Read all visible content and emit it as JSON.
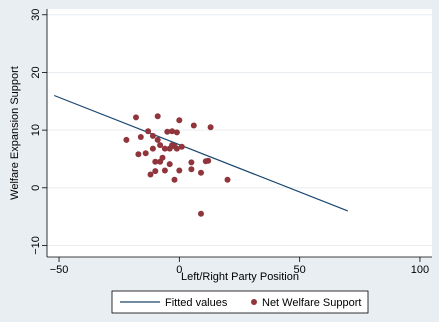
{
  "chart_data": {
    "type": "scatter",
    "title": "",
    "xlabel": "Left/Right Party Position",
    "ylabel": "Welfare Expansion Support",
    "xlim": [
      -55,
      105
    ],
    "ylim": [
      -12,
      31
    ],
    "xticks": [
      -50,
      0,
      50,
      100
    ],
    "yticks": [
      -10,
      0,
      10,
      20,
      30
    ],
    "grid": "horizontal",
    "legend_position": "bottom",
    "colors": {
      "plot_background": "#ffffff",
      "outer_background": "#e9eef2",
      "gridline": "#e9eef2",
      "fit_line": "#1a476f",
      "points": "#90353b"
    },
    "series": [
      {
        "name": "Fitted values",
        "kind": "line",
        "x": [
          -52,
          70
        ],
        "y": [
          16,
          -4
        ]
      },
      {
        "name": "Net Welfare Support",
        "kind": "scatter",
        "x": [
          -22,
          -18,
          -17,
          -16,
          -14,
          -13,
          -12,
          -11,
          -11,
          -10,
          -10,
          -9,
          -9,
          -8,
          -8,
          -7,
          -6,
          -6,
          -5,
          -4,
          -4,
          -3,
          -3,
          -2,
          -2,
          -1,
          -1,
          0,
          0,
          1,
          5,
          5,
          6,
          9,
          9,
          11,
          12,
          13,
          20
        ],
        "y": [
          8.3,
          12.2,
          5.8,
          8.8,
          6.0,
          9.8,
          2.3,
          9.0,
          6.8,
          2.9,
          4.5,
          8.3,
          12.4,
          4.5,
          7.4,
          5.2,
          6.8,
          3.0,
          9.7,
          4.1,
          6.8,
          7.4,
          9.8,
          1.4,
          7.2,
          9.6,
          6.8,
          11.7,
          3.0,
          7.1,
          4.4,
          3.2,
          10.8,
          2.6,
          -4.5,
          4.6,
          4.7,
          10.5,
          1.4
        ]
      }
    ]
  }
}
